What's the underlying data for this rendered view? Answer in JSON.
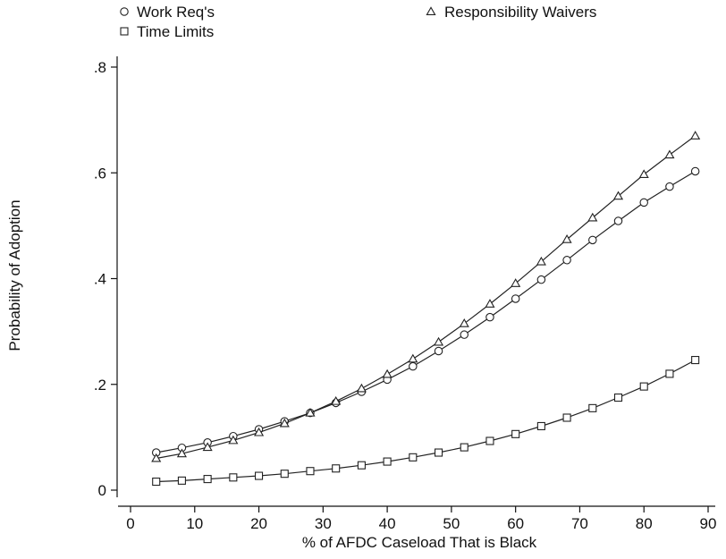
{
  "chart_data": {
    "type": "line",
    "xlabel": "% of AFDC Caseload That is Black",
    "ylabel": "Probability of Adoption",
    "xlim": [
      0,
      90
    ],
    "ylim": [
      0,
      0.8
    ],
    "x_ticks": [
      0,
      10,
      20,
      30,
      40,
      50,
      60,
      70,
      80,
      90
    ],
    "x_tick_labels": [
      "0",
      "10",
      "20",
      "30",
      "40",
      "50",
      "60",
      "70",
      "80",
      "90"
    ],
    "y_ticks": [
      0,
      0.2,
      0.4,
      0.6,
      0.8
    ],
    "y_tick_labels": [
      "0",
      ".2",
      ".4",
      ".6",
      ".8"
    ],
    "grid": false,
    "legend_position": "top",
    "x": [
      4,
      8,
      12,
      16,
      20,
      24,
      28,
      32,
      36,
      40,
      44,
      48,
      52,
      56,
      60,
      64,
      68,
      72,
      76,
      80,
      84,
      88
    ],
    "series": [
      {
        "name": "Work Req's",
        "marker": "circle",
        "values": [
          0.071,
          0.08,
          0.09,
          0.102,
          0.115,
          0.13,
          0.146,
          0.165,
          0.186,
          0.209,
          0.234,
          0.263,
          0.294,
          0.327,
          0.362,
          0.398,
          0.435,
          0.473,
          0.509,
          0.544,
          0.574,
          0.603
        ]
      },
      {
        "name": "Responsibility Waivers",
        "marker": "triangle",
        "values": [
          0.06,
          0.069,
          0.081,
          0.094,
          0.109,
          0.126,
          0.146,
          0.168,
          0.192,
          0.219,
          0.248,
          0.28,
          0.315,
          0.352,
          0.391,
          0.432,
          0.474,
          0.515,
          0.556,
          0.597,
          0.634,
          0.67
        ]
      },
      {
        "name": "Time Limits",
        "marker": "square",
        "values": [
          0.016,
          0.018,
          0.021,
          0.024,
          0.027,
          0.031,
          0.036,
          0.041,
          0.047,
          0.054,
          0.062,
          0.071,
          0.081,
          0.093,
          0.106,
          0.121,
          0.137,
          0.155,
          0.175,
          0.196,
          0.22,
          0.246
        ]
      }
    ]
  }
}
